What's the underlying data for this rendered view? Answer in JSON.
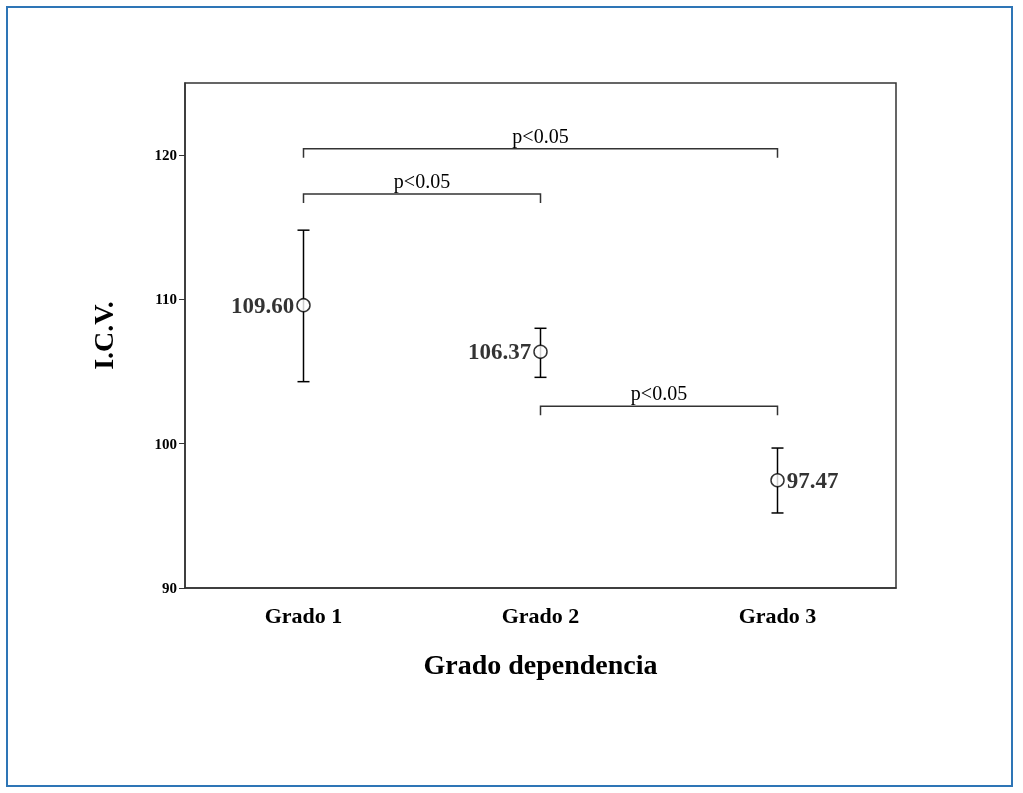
{
  "chart_data": {
    "type": "scatter",
    "xlabel": "Grado dependencia",
    "ylabel": "I.C.V.",
    "categories": [
      "Grado 1",
      "Grado 2",
      "Grado 3"
    ],
    "values": [
      109.6,
      106.37,
      97.47
    ],
    "errors": [
      [
        104.3,
        114.8
      ],
      [
        104.6,
        108.0
      ],
      [
        95.2,
        99.7
      ]
    ],
    "value_labels": [
      "109.60",
      "106.37",
      "97.47"
    ],
    "color": "#000000",
    "marker": "circle",
    "grid": false,
    "ylim": [
      90,
      125
    ],
    "yticks": [
      90,
      100,
      110,
      120
    ],
    "annotations": [
      "p<0.05",
      "p<0.05",
      "p<0.05"
    ]
  }
}
